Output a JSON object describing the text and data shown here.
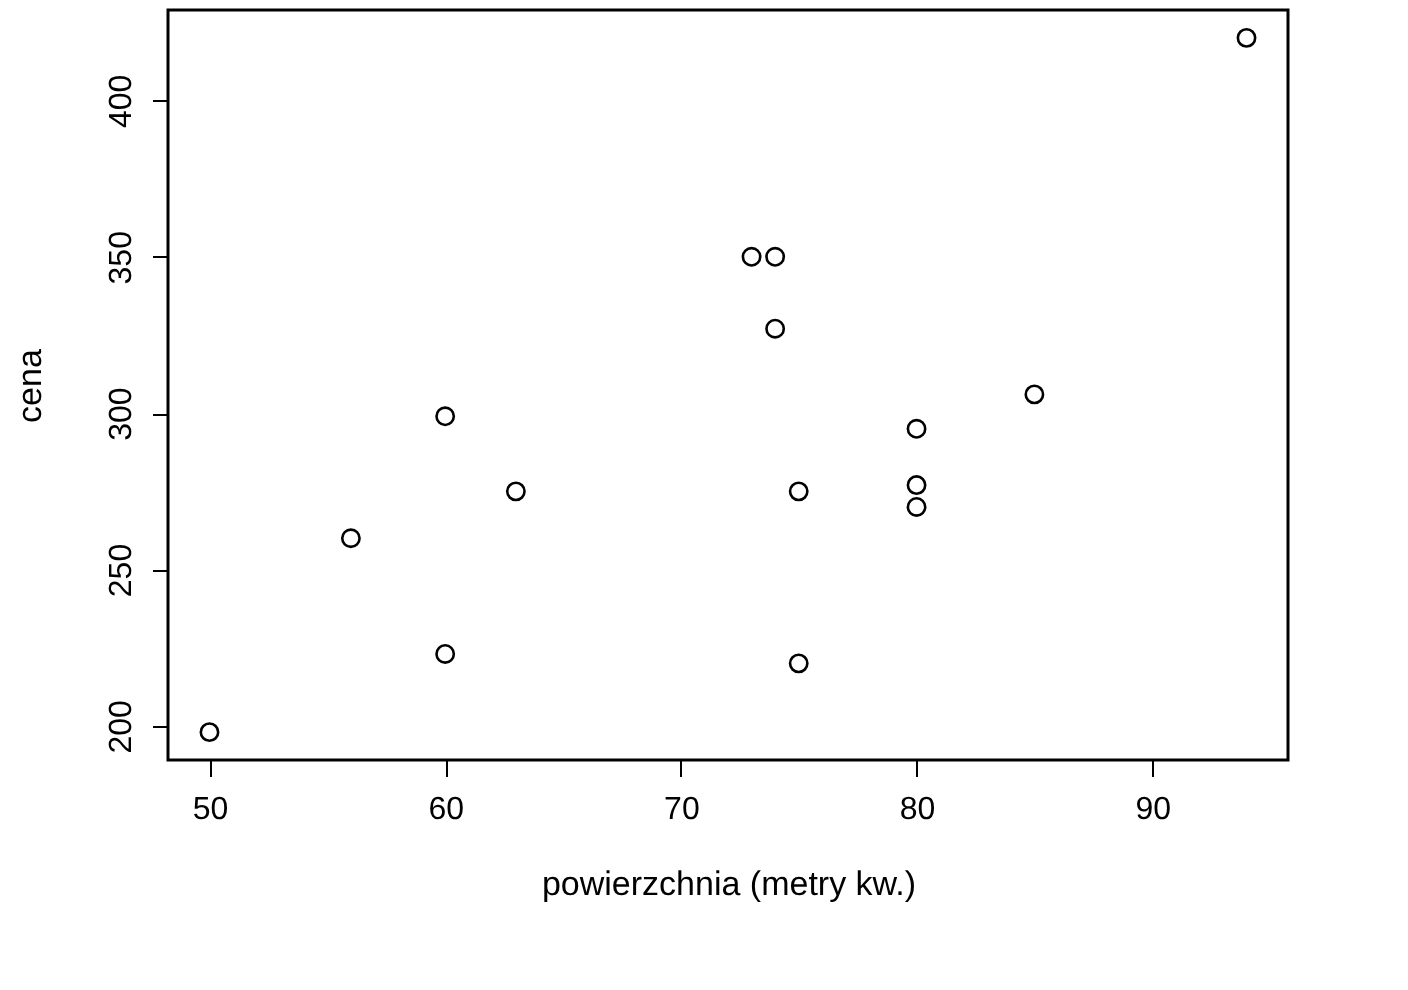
{
  "chart_data": {
    "type": "scatter",
    "xlabel": "powierzchnia (metry kw.)",
    "ylabel": "cena",
    "x": [
      50,
      56,
      60,
      60,
      63,
      73,
      74,
      74,
      75,
      75,
      80,
      80,
      80,
      85,
      94
    ],
    "values": [
      198,
      260,
      299,
      223,
      275,
      350,
      350,
      327,
      275,
      220,
      295,
      277,
      270,
      306,
      420
    ],
    "color": "#000000",
    "marker": "circle",
    "grid": false,
    "xlim": [
      48.24,
      95.76
    ],
    "xticks": [
      50,
      60,
      70,
      80,
      90
    ],
    "ylim": [
      189.1,
      428.9
    ],
    "yticks": [
      200,
      250,
      300,
      350,
      400
    ]
  }
}
